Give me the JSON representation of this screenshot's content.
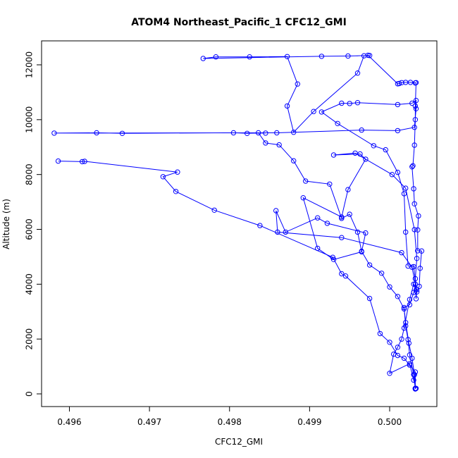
{
  "chart_data": {
    "type": "line",
    "title": "ATOM4 Northeast_Pacific_1 CFC12_GMI",
    "xlabel": "CFC12_GMI",
    "ylabel": "Altitude (m)",
    "xlim": [
      0.4958,
      0.50055
    ],
    "ylim": [
      0,
      12750
    ],
    "x_ticks": [
      0.496,
      0.497,
      0.498,
      0.499,
      0.5
    ],
    "x_tick_labels": [
      "0.496",
      "0.497",
      "0.498",
      "0.499",
      "0.500"
    ],
    "y_ticks": [
      0,
      2000,
      4000,
      6000,
      8000,
      10000,
      12000
    ],
    "y_tick_labels": [
      "0",
      "2000",
      "4000",
      "6000",
      "8000",
      "10000",
      "12000"
    ],
    "grid": false,
    "color": "#0000ff",
    "series": [
      {
        "points": [
          [
            0.50032,
            200
          ],
          [
            0.50031,
            700
          ],
          [
            0.50028,
            1300
          ],
          [
            0.50024,
            1850
          ],
          [
            0.5002,
            2600
          ],
          [
            0.50018,
            3100
          ],
          [
            0.5001,
            3550
          ],
          [
            0.5,
            3900
          ],
          [
            0.4999,
            4400
          ],
          [
            0.49975,
            4700
          ],
          [
            0.49965,
            5200
          ],
          [
            0.4996,
            5900
          ],
          [
            0.4995,
            6550
          ],
          [
            0.4994,
            6400
          ],
          [
            0.49925,
            7650
          ],
          [
            0.49895,
            7760
          ],
          [
            0.4988,
            8500
          ],
          [
            0.49862,
            9080
          ],
          [
            0.49845,
            9150
          ],
          [
            0.49836,
            9520
          ],
          [
            0.49845,
            9510
          ],
          [
            0.49822,
            9500
          ],
          [
            0.49805,
            9520
          ],
          [
            0.49666,
            9500
          ],
          [
            0.49634,
            9520
          ],
          [
            0.49581,
            9510
          ],
          [
            0.49859,
            9520
          ],
          [
            0.49965,
            9620
          ],
          [
            0.5001,
            9600
          ],
          [
            0.50031,
            9720
          ],
          [
            0.50033,
            10400
          ],
          [
            0.50033,
            10700
          ],
          [
            0.50028,
            10600
          ],
          [
            0.5001,
            10550
          ],
          [
            0.4996,
            10620
          ],
          [
            0.4995,
            10590
          ],
          [
            0.4994,
            10600
          ],
          [
            0.49915,
            10280
          ],
          [
            0.49935,
            9860
          ],
          [
            0.4998,
            9050
          ],
          [
            0.49995,
            8900
          ],
          [
            0.5001,
            8080
          ],
          [
            0.50018,
            7300
          ],
          [
            0.5002,
            5900
          ],
          [
            0.50023,
            4660
          ],
          [
            0.5003,
            4640
          ],
          [
            0.50034,
            3720
          ],
          [
            0.50037,
            3920
          ],
          [
            0.50038,
            4580
          ],
          [
            0.5004,
            5210
          ],
          [
            0.50035,
            5220
          ],
          [
            0.50035,
            5980
          ],
          [
            0.50036,
            6490
          ],
          [
            0.50031,
            6930
          ],
          [
            0.5003,
            7480
          ],
          [
            0.50028,
            8280
          ],
          [
            0.50029,
            8320
          ],
          [
            0.50031,
            9070
          ],
          [
            0.50032,
            10000
          ],
          [
            0.50032,
            10500
          ],
          [
            0.50033,
            11350
          ],
          [
            0.50032,
            11340
          ],
          [
            0.50026,
            11360
          ],
          [
            0.5002,
            11360
          ],
          [
            0.50015,
            11350
          ],
          [
            0.50012,
            11320
          ],
          [
            0.5001,
            11310
          ],
          [
            0.49973,
            12350
          ],
          [
            0.49968,
            12330
          ],
          [
            0.4996,
            11700
          ],
          [
            0.49905,
            10300
          ],
          [
            0.4988,
            9540
          ],
          [
            0.49872,
            10500
          ],
          [
            0.49885,
            11300
          ],
          [
            0.49872,
            12300
          ],
          [
            0.49825,
            12290
          ],
          [
            0.49783,
            12290
          ],
          [
            0.49767,
            12230
          ],
          [
            0.49915,
            12310
          ],
          [
            0.49948,
            12320
          ],
          [
            0.49975,
            12340
          ]
        ]
      },
      {
        "points": [
          [
            0.49586,
            8490
          ],
          [
            0.49616,
            8470
          ],
          [
            0.49619,
            8480
          ],
          [
            0.49735,
            8090
          ],
          [
            0.49717,
            7920
          ],
          [
            0.49733,
            7380
          ],
          [
            0.49781,
            6700
          ],
          [
            0.49838,
            6140
          ],
          [
            0.49929,
            4980
          ],
          [
            0.4994,
            4380
          ],
          [
            0.49945,
            4300
          ],
          [
            0.49975,
            3480
          ],
          [
            0.49988,
            2200
          ],
          [
            0.5,
            1880
          ],
          [
            0.5001,
            1400
          ],
          [
            0.50018,
            1300
          ],
          [
            0.50025,
            1050
          ],
          [
            0.50032,
            800
          ],
          [
            0.50032,
            200
          ]
        ]
      },
      {
        "points": [
          [
            0.50032,
            180
          ],
          [
            0.5003,
            700
          ],
          [
            0.50025,
            1420
          ],
          [
            0.50023,
            1980
          ],
          [
            0.5002,
            2480
          ],
          [
            0.50018,
            3150
          ],
          [
            0.50025,
            3250
          ],
          [
            0.5003,
            3700
          ],
          [
            0.50032,
            4000
          ],
          [
            0.50028,
            4620
          ],
          [
            0.50015,
            5150
          ],
          [
            0.4994,
            5700
          ],
          [
            0.4986,
            5900
          ],
          [
            0.49858,
            6680
          ],
          [
            0.4987,
            5900
          ],
          [
            0.4991,
            6420
          ],
          [
            0.49922,
            6220
          ],
          [
            0.4997,
            5870
          ],
          [
            0.49965,
            5180
          ],
          [
            0.4993,
            4900
          ],
          [
            0.4991,
            5310
          ],
          [
            0.49892,
            7150
          ],
          [
            0.4994,
            6450
          ],
          [
            0.49948,
            7450
          ],
          [
            0.4997,
            8560
          ],
          [
            0.49963,
            8750
          ],
          [
            0.4993,
            8710
          ],
          [
            0.49957,
            8780
          ],
          [
            0.50003,
            8000
          ],
          [
            0.5002,
            7500
          ],
          [
            0.50031,
            5990
          ],
          [
            0.50034,
            4940
          ],
          [
            0.50032,
            4200
          ],
          [
            0.50033,
            3470
          ],
          [
            0.50034,
            3800
          ],
          [
            0.5003,
            4000
          ],
          [
            0.50025,
            3440
          ],
          [
            0.50018,
            2400
          ],
          [
            0.50015,
            2000
          ],
          [
            0.5001,
            1700
          ],
          [
            0.50005,
            1450
          ],
          [
            0.5,
            750
          ],
          [
            0.50025,
            1100
          ],
          [
            0.5003,
            500
          ],
          [
            0.50033,
            200
          ]
        ]
      }
    ]
  }
}
